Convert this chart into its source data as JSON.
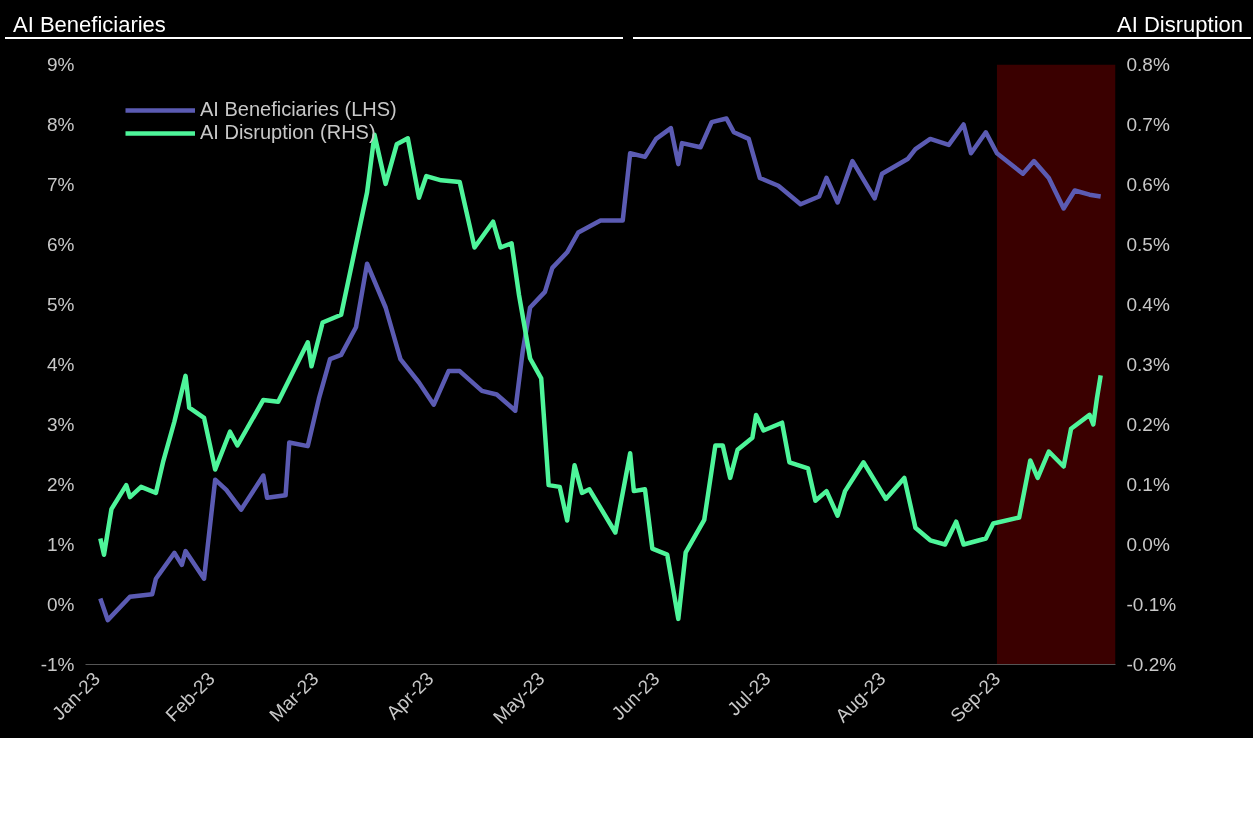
{
  "chart_data": {
    "type": "line",
    "ylabel": "AI Beneficiaries",
    "y2label": "AI Disruption",
    "xlim": [
      "2022-12-29",
      "2023-10-03"
    ],
    "xticks": [
      {
        "value": "2023-01-01",
        "label": "Jan-23"
      },
      {
        "value": "2023-02-01",
        "label": "Feb-23"
      },
      {
        "value": "2023-03-01",
        "label": "Mar-23"
      },
      {
        "value": "2023-04-01",
        "label": "Apr-23"
      },
      {
        "value": "2023-05-01",
        "label": "May-23"
      },
      {
        "value": "2023-06-01",
        "label": "Jun-23"
      },
      {
        "value": "2023-07-01",
        "label": "Jul-23"
      },
      {
        "value": "2023-08-01",
        "label": "Aug-23"
      },
      {
        "value": "2023-09-01",
        "label": "Sep-23"
      }
    ],
    "ylim": [
      -1,
      9
    ],
    "yticks": [
      {
        "value": -1,
        "label": "-1%"
      },
      {
        "value": 0,
        "label": "0%"
      },
      {
        "value": 1,
        "label": "1%"
      },
      {
        "value": 2,
        "label": "2%"
      },
      {
        "value": 3,
        "label": "3%"
      },
      {
        "value": 4,
        "label": "4%"
      },
      {
        "value": 5,
        "label": "5%"
      },
      {
        "value": 6,
        "label": "6%"
      },
      {
        "value": 7,
        "label": "7%"
      },
      {
        "value": 8,
        "label": "8%"
      },
      {
        "value": 9,
        "label": "9%"
      }
    ],
    "y2lim": [
      -0.2,
      0.8
    ],
    "y2ticks": [
      {
        "value": -0.2,
        "label": "-0.2%"
      },
      {
        "value": -0.1,
        "label": "-0.1%"
      },
      {
        "value": 0.0,
        "label": "0.0%"
      },
      {
        "value": 0.1,
        "label": "0.1%"
      },
      {
        "value": 0.2,
        "label": "0.2%"
      },
      {
        "value": 0.3,
        "label": "0.3%"
      },
      {
        "value": 0.4,
        "label": "0.4%"
      },
      {
        "value": 0.5,
        "label": "0.5%"
      },
      {
        "value": 0.6,
        "label": "0.6%"
      },
      {
        "value": 0.7,
        "label": "0.7%"
      },
      {
        "value": 0.8,
        "label": "0.8%"
      }
    ],
    "bands": [
      {
        "axis": "x",
        "from": "2023-09-01",
        "to": "2023-10-03",
        "color": "#3a0000"
      }
    ],
    "legend": "top left",
    "grid": false,
    "series": [
      {
        "name": "AI Beneficiaries (LHS)",
        "color": "#5b5bb3",
        "x": [
          "2023-01-02",
          "2023-01-04",
          "2023-01-10",
          "2023-01-16",
          "2023-01-17",
          "2023-01-22",
          "2023-01-24",
          "2023-01-25",
          "2023-01-30",
          "2023-02-02",
          "2023-02-05",
          "2023-02-09",
          "2023-02-15",
          "2023-02-16",
          "2023-02-21",
          "2023-02-22",
          "2023-02-27",
          "2023-03-02",
          "2023-03-05",
          "2023-03-08",
          "2023-03-12",
          "2023-03-15",
          "2023-03-20",
          "2023-03-24",
          "2023-03-29",
          "2023-04-02",
          "2023-04-06",
          "2023-04-09",
          "2023-04-15",
          "2023-04-19",
          "2023-04-24",
          "2023-04-26",
          "2023-04-28",
          "2023-05-02",
          "2023-05-04",
          "2023-05-08",
          "2023-05-11",
          "2023-05-17",
          "2023-05-23",
          "2023-05-25",
          "2023-05-29",
          "2023-06-01",
          "2023-06-05",
          "2023-06-07",
          "2023-06-08",
          "2023-06-13",
          "2023-06-16",
          "2023-06-20",
          "2023-06-22",
          "2023-06-26",
          "2023-06-29",
          "2023-07-04",
          "2023-07-10",
          "2023-07-15",
          "2023-07-17",
          "2023-07-20",
          "2023-07-24",
          "2023-07-30",
          "2023-08-01",
          "2023-08-08",
          "2023-08-10",
          "2023-08-14",
          "2023-08-19",
          "2023-08-23",
          "2023-08-25",
          "2023-08-29",
          "2023-09-01",
          "2023-09-08",
          "2023-09-11",
          "2023-09-15",
          "2023-09-19",
          "2023-09-22",
          "2023-09-26",
          "2023-09-29"
        ],
        "values": [
          0.1,
          -0.26,
          0.13,
          0.17,
          0.43,
          0.86,
          0.66,
          0.89,
          0.43,
          2.08,
          1.91,
          1.58,
          2.15,
          1.78,
          1.82,
          2.7,
          2.64,
          3.43,
          4.09,
          4.16,
          4.62,
          5.68,
          4.95,
          4.09,
          3.7,
          3.33,
          3.89,
          3.89,
          3.56,
          3.5,
          3.23,
          4.22,
          4.95,
          5.21,
          5.61,
          5.87,
          6.2,
          6.4,
          6.4,
          7.52,
          7.46,
          7.76,
          7.94,
          7.34,
          7.69,
          7.62,
          8.04,
          8.1,
          7.87,
          7.76,
          7.11,
          6.98,
          6.67,
          6.8,
          7.11,
          6.7,
          7.39,
          6.77,
          7.18,
          7.43,
          7.59,
          7.76,
          7.66,
          8.0,
          7.52,
          7.87,
          7.52,
          7.18,
          7.39,
          7.11,
          6.6,
          6.9,
          6.83,
          6.8
        ]
      },
      {
        "name": "AI Disruption (RHS)",
        "color": "#4ef59a",
        "axis": "y2",
        "x": [
          "2023-01-02",
          "2023-01-03",
          "2023-01-05",
          "2023-01-09",
          "2023-01-10",
          "2023-01-13",
          "2023-01-17",
          "2023-01-19",
          "2023-01-22",
          "2023-01-25",
          "2023-01-26",
          "2023-01-30",
          "2023-02-02",
          "2023-02-06",
          "2023-02-08",
          "2023-02-15",
          "2023-02-19",
          "2023-02-27",
          "2023-02-28",
          "2023-03-03",
          "2023-03-08",
          "2023-03-15",
          "2023-03-17",
          "2023-03-20",
          "2023-03-23",
          "2023-03-26",
          "2023-03-29",
          "2023-03-31",
          "2023-04-04",
          "2023-04-09",
          "2023-04-13",
          "2023-04-18",
          "2023-04-20",
          "2023-04-23",
          "2023-04-25",
          "2023-04-28",
          "2023-05-01",
          "2023-05-03",
          "2023-05-06",
          "2023-05-08",
          "2023-05-10",
          "2023-05-12",
          "2023-05-14",
          "2023-05-21",
          "2023-05-25",
          "2023-05-26",
          "2023-05-29",
          "2023-05-31",
          "2023-06-04",
          "2023-06-07",
          "2023-06-09",
          "2023-06-14",
          "2023-06-17",
          "2023-06-19",
          "2023-06-21",
          "2023-06-23",
          "2023-06-27",
          "2023-06-28",
          "2023-06-30",
          "2023-07-05",
          "2023-07-07",
          "2023-07-12",
          "2023-07-14",
          "2023-07-17",
          "2023-07-20",
          "2023-07-22",
          "2023-07-27",
          "2023-08-02",
          "2023-08-07",
          "2023-08-10",
          "2023-08-14",
          "2023-08-18",
          "2023-08-21",
          "2023-08-23",
          "2023-08-29",
          "2023-08-31",
          "2023-09-07",
          "2023-09-10",
          "2023-09-12",
          "2023-09-15",
          "2023-09-19",
          "2023-09-21",
          "2023-09-26",
          "2023-09-27",
          "2023-09-28",
          "2023-09-29"
        ],
        "values": [
          0.01,
          -0.017,
          0.059,
          0.099,
          0.079,
          0.096,
          0.086,
          0.139,
          0.205,
          0.281,
          0.228,
          0.211,
          0.125,
          0.188,
          0.165,
          0.241,
          0.238,
          0.337,
          0.297,
          0.37,
          0.383,
          0.587,
          0.683,
          0.601,
          0.667,
          0.677,
          0.578,
          0.614,
          0.607,
          0.604,
          0.495,
          0.538,
          0.495,
          0.502,
          0.416,
          0.31,
          0.277,
          0.099,
          0.096,
          0.04,
          0.132,
          0.086,
          0.092,
          0.02,
          0.152,
          0.089,
          0.092,
          -0.007,
          -0.017,
          -0.124,
          -0.013,
          0.041,
          0.165,
          0.165,
          0.111,
          0.158,
          0.178,
          0.216,
          0.19,
          0.203,
          0.137,
          0.127,
          0.073,
          0.089,
          0.048,
          0.089,
          0.137,
          0.076,
          0.111,
          0.028,
          0.007,
          0.0,
          0.038,
          0.0,
          0.01,
          0.035,
          0.045,
          0.14,
          0.111,
          0.155,
          0.13,
          0.193,
          0.216,
          0.2,
          0.244,
          0.282
        ]
      }
    ]
  }
}
